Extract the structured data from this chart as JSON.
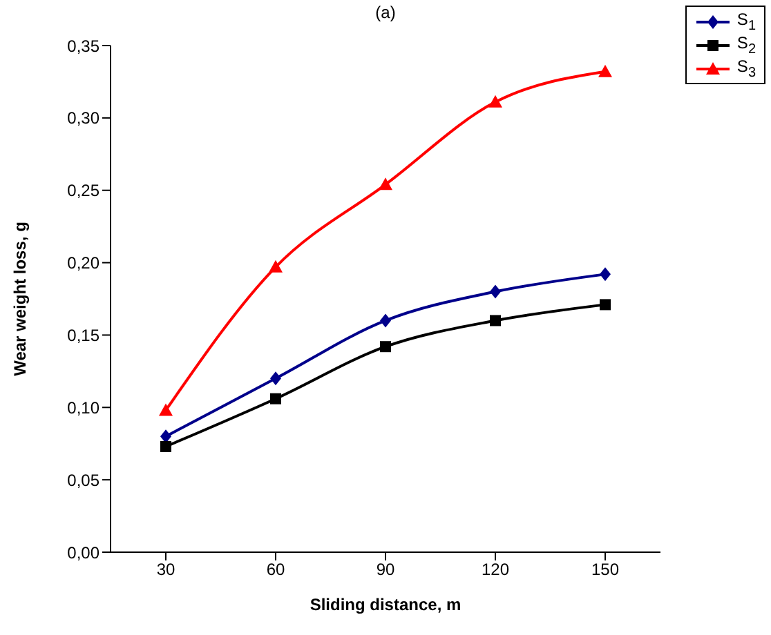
{
  "chart_data": {
    "type": "line",
    "title": "(a)",
    "xlabel": "Sliding distance, m",
    "ylabel": "Wear weight loss, g",
    "categories": [
      "30",
      "60",
      "90",
      "120",
      "150"
    ],
    "series": [
      {
        "name": "S$_{1}$",
        "color": "#00008b",
        "marker": "diamond",
        "values": [
          0.08,
          0.12,
          0.16,
          0.18,
          0.192
        ]
      },
      {
        "name": "S$_{2}$",
        "color": "#000000",
        "marker": "square",
        "values": [
          0.073,
          0.106,
          0.142,
          0.16,
          0.171
        ]
      },
      {
        "name": "S$_{3}$",
        "color": "#ff0000",
        "marker": "triangle",
        "values": [
          0.098,
          0.197,
          0.254,
          0.311,
          0.332
        ]
      }
    ],
    "ylim": [
      0,
      0.35
    ],
    "yticks": [
      {
        "value": 0,
        "label": "0,00"
      },
      {
        "value": 0.05,
        "label": "0,05"
      },
      {
        "value": 0.1,
        "label": "0,10"
      },
      {
        "value": 0.15,
        "label": "0,15"
      },
      {
        "value": 0.2,
        "label": "0,20"
      },
      {
        "value": 0.25,
        "label": "0,25"
      },
      {
        "value": 0.3,
        "label": "0,30"
      },
      {
        "value": 0.35,
        "label": "0,35"
      }
    ],
    "grid": false,
    "legend": "top right",
    "line_style": "solid"
  }
}
